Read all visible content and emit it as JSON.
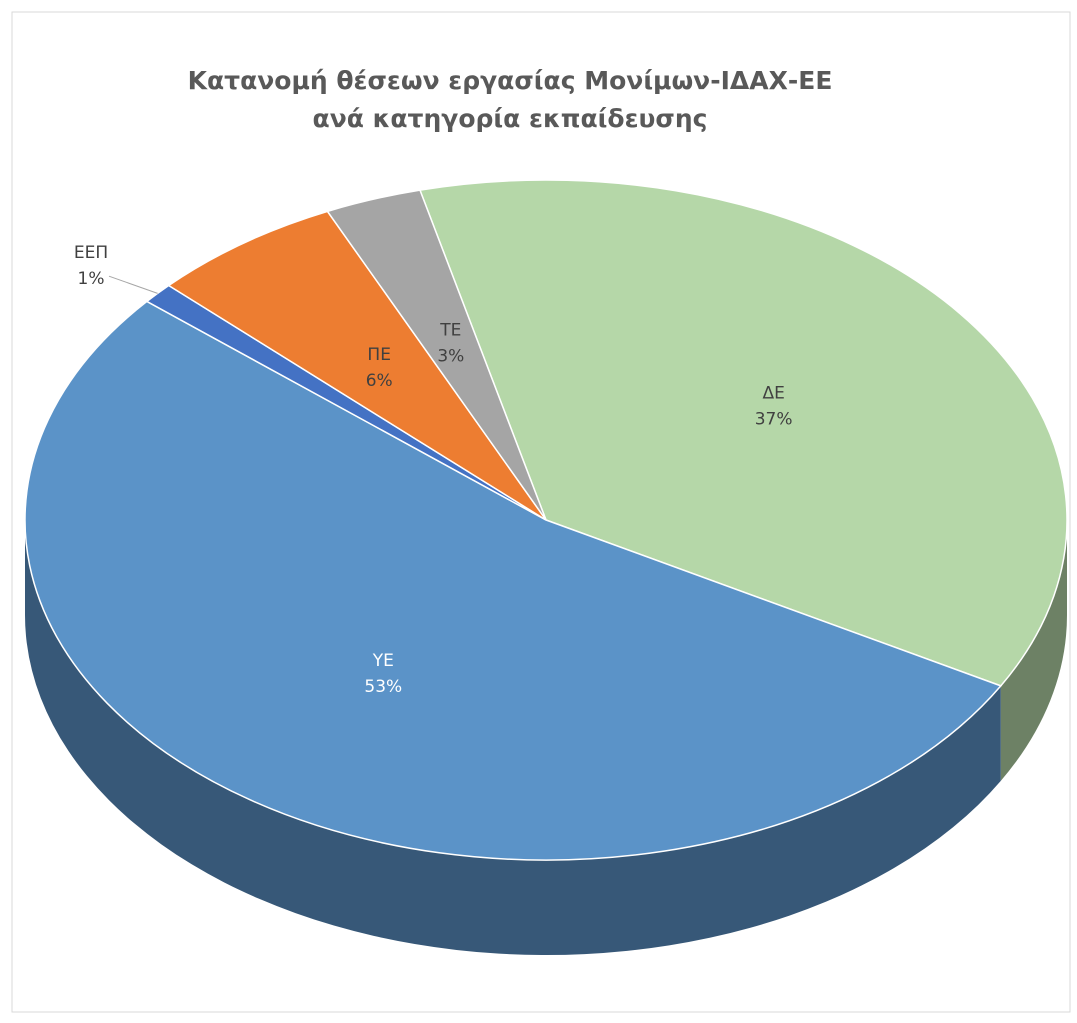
{
  "chart_data": {
    "type": "pie3d",
    "title": "Κατανομή θέσεων εργασίας Μονίμων-ΙΔΑΧ-ΕΕ",
    "subtitle": "ανά κατηγορία εκπαίδευσης",
    "categories": [
      "ΔΕ",
      "ΥΕ",
      "ΕΕΠ",
      "ΠΕ",
      "ΤΕ"
    ],
    "values": [
      37,
      53,
      1,
      6,
      3
    ],
    "value_labels": [
      "37%",
      "53%",
      "1%",
      "6%",
      "3%"
    ],
    "colors": [
      "#b5d7a8",
      "#5b93c8",
      "#4472c4",
      "#ed7d31",
      "#a5a5a5"
    ]
  }
}
